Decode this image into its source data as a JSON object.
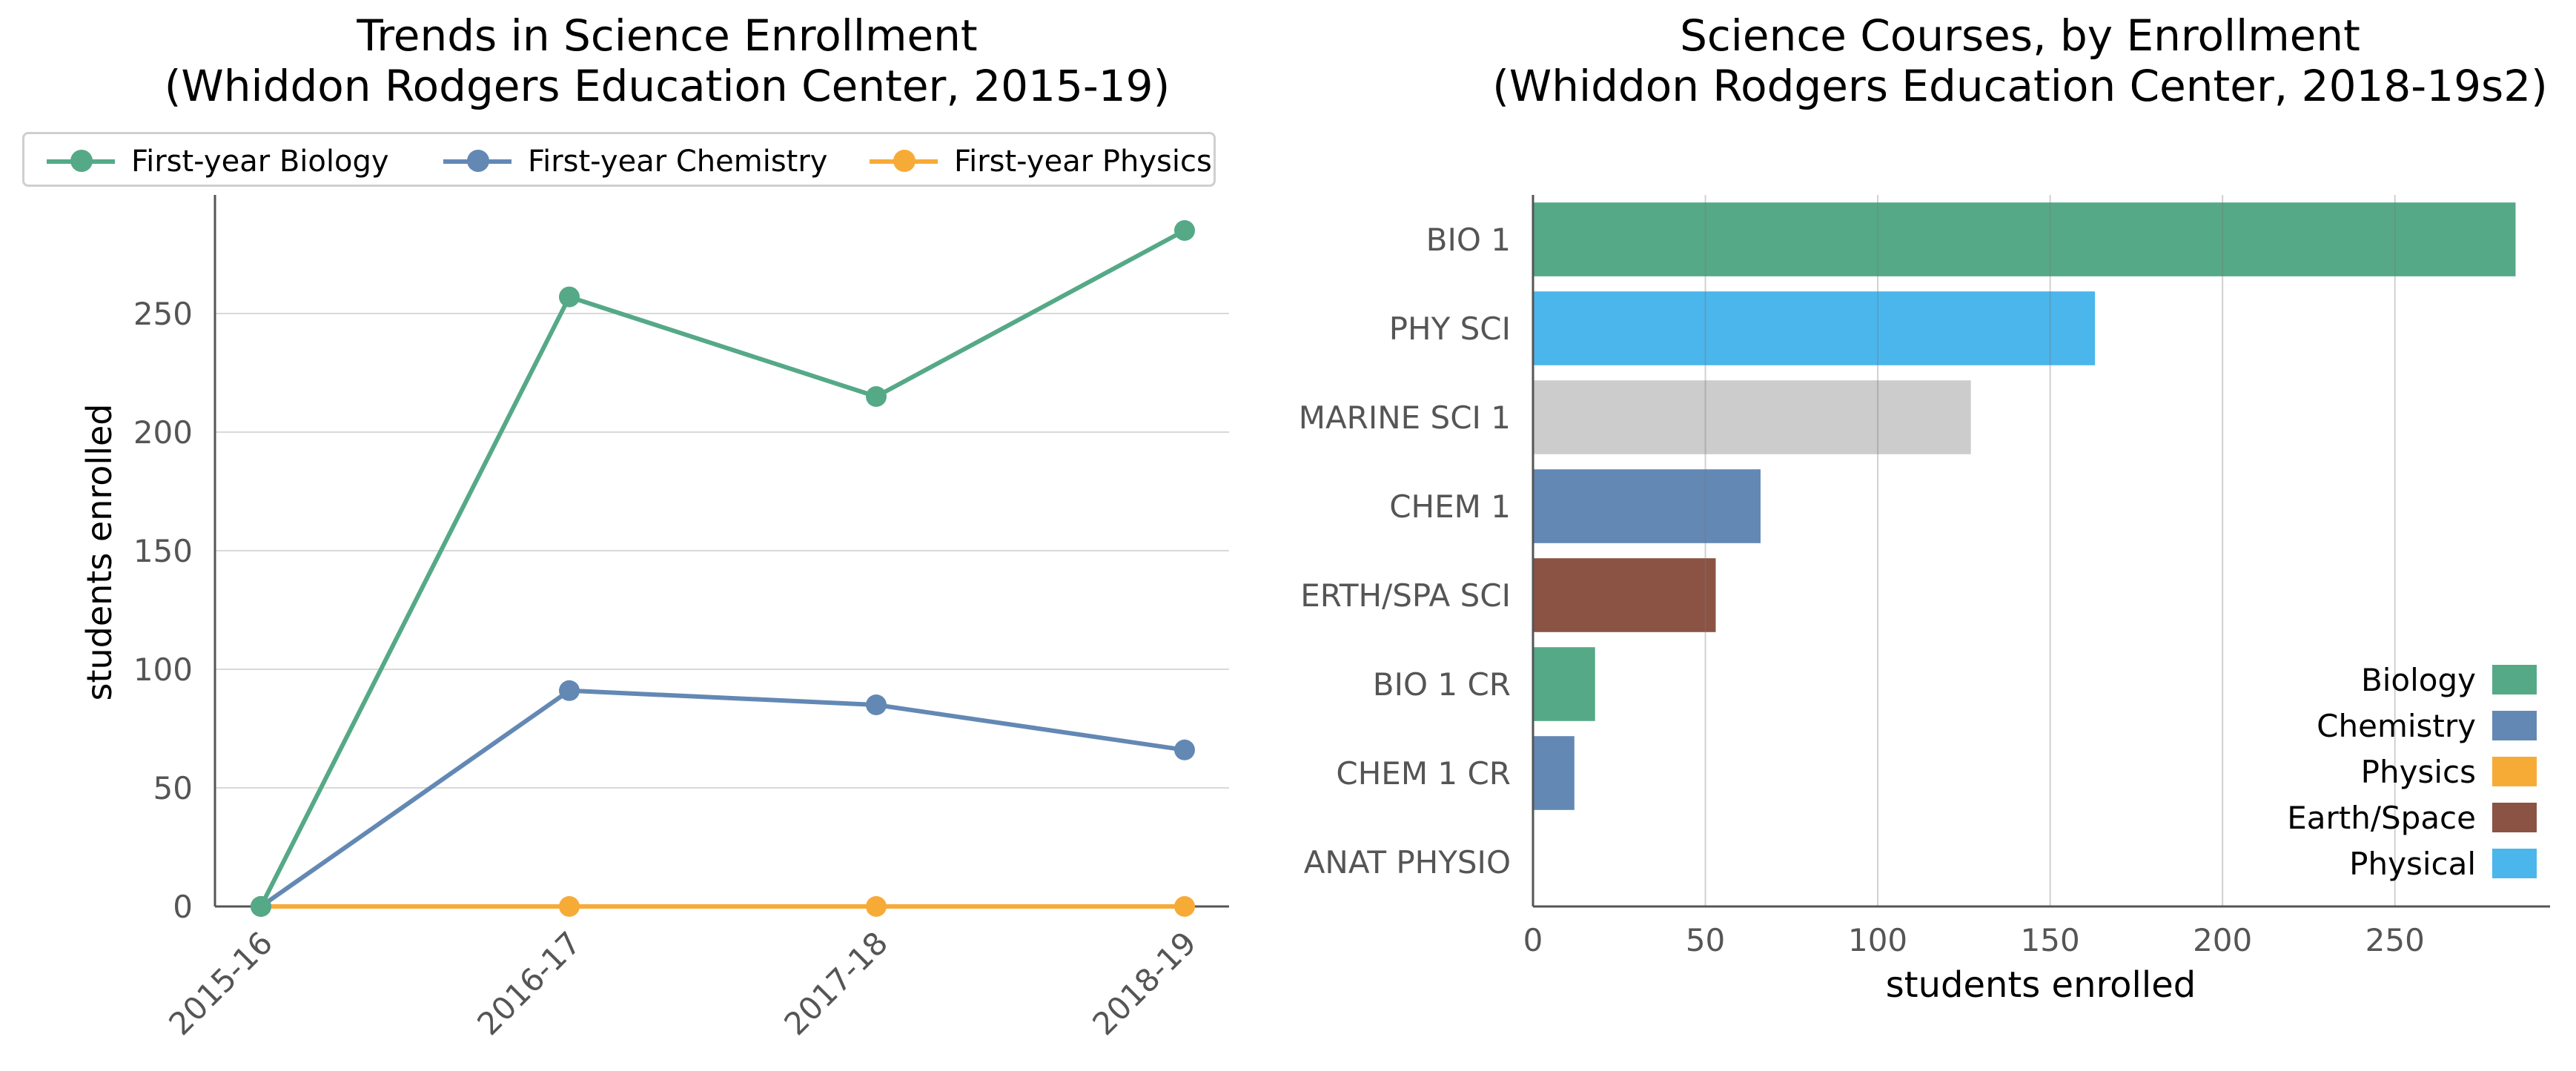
{
  "chart_data": [
    {
      "type": "line",
      "title_lines": [
        "Trends in Science Enrollment",
        "(Whiddon Rodgers Education Center, 2015-19)"
      ],
      "xlabel": "",
      "ylabel": "students enrolled",
      "categories": [
        "2015-16",
        "2016-17",
        "2017-18",
        "2018-19"
      ],
      "series": [
        {
          "name": "First-year Biology",
          "color": "#55a987",
          "values": [
            0,
            257,
            215,
            285
          ]
        },
        {
          "name": "First-year Chemistry",
          "color": "#6388b4",
          "values": [
            0,
            91,
            85,
            66
          ]
        },
        {
          "name": "First-year Physics",
          "color": "#f7ab37",
          "values": [
            0,
            0,
            0,
            0
          ]
        }
      ],
      "ylim": [
        0,
        300
      ],
      "yticks": [
        "0",
        "50",
        "100",
        "150",
        "200",
        "250"
      ],
      "grid": "horizontal",
      "legend_position": "top"
    },
    {
      "type": "bar",
      "orientation": "horizontal",
      "title_lines": [
        "Science Courses, by Enrollment",
        "(Whiddon Rodgers Education Center, 2018-19s2)"
      ],
      "xlabel": "students enrolled",
      "ylabel": "",
      "categories": [
        "BIO 1",
        "PHY SCI",
        "MARINE SCI 1",
        "CHEM 1",
        "ERTH/SPA SCI",
        "BIO 1 CR",
        "CHEM 1 CR",
        "ANAT PHYSIO"
      ],
      "values": [
        285,
        163,
        127,
        66,
        53,
        18,
        12,
        0
      ],
      "bar_colors": [
        "#55a987",
        "#4bb6ec",
        "#cccccc",
        "#6388b4",
        "#8a5344",
        "#55a987",
        "#6388b4",
        "#cccccc"
      ],
      "xlim": [
        0,
        295
      ],
      "xticks": [
        "0",
        "50",
        "100",
        "150",
        "200",
        "250"
      ],
      "grid": "vertical",
      "legend_position": "bottom-right",
      "legend": [
        {
          "label": "Biology",
          "color": "#55a987"
        },
        {
          "label": "Chemistry",
          "color": "#6388b4"
        },
        {
          "label": "Physics",
          "color": "#f7ab37"
        },
        {
          "label": "Earth/Space",
          "color": "#8a5344"
        },
        {
          "label": "Physical",
          "color": "#4bb6ec"
        }
      ]
    }
  ]
}
